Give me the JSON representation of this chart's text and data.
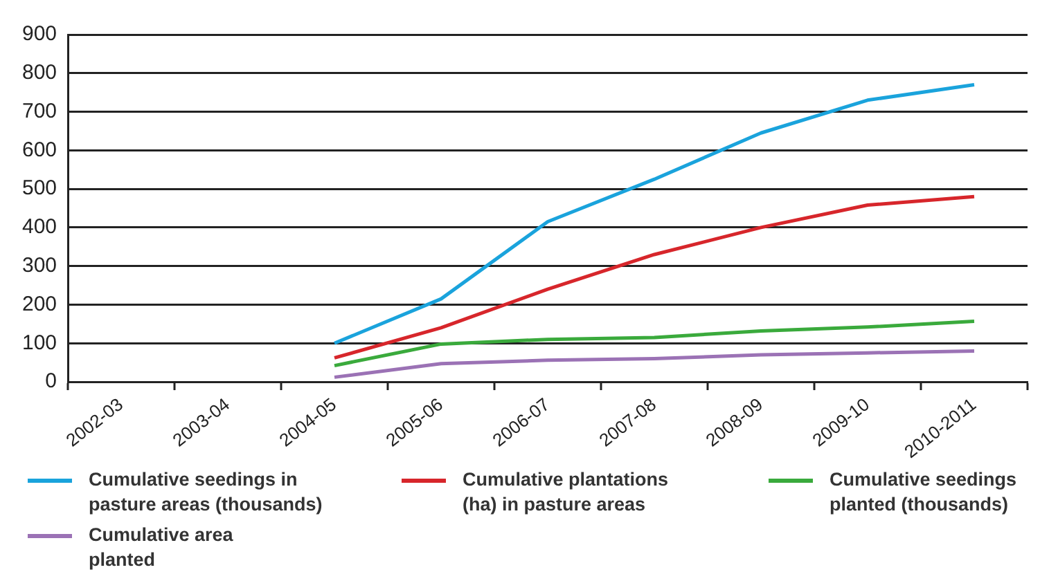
{
  "chart_data": {
    "type": "line",
    "categories": [
      "2002-03",
      "2003-04",
      "2004-05",
      "2005-06",
      "2006-07",
      "2007-08",
      "2008-09",
      "2009-10",
      "2010-2011"
    ],
    "series": [
      {
        "name": "Cumulative seedings in pasture areas (thousands)",
        "color": "#1aa3dc",
        "values": [
          null,
          null,
          100,
          215,
          415,
          525,
          645,
          730,
          770
        ]
      },
      {
        "name": "Cumulative plantations (ha) in pasture areas",
        "color": "#d7262b",
        "values": [
          null,
          null,
          62,
          140,
          240,
          330,
          400,
          458,
          480
        ]
      },
      {
        "name": "Cumulative seedings planted (thousands)",
        "color": "#3aaa3c",
        "values": [
          null,
          null,
          42,
          98,
          110,
          115,
          132,
          142,
          157
        ]
      },
      {
        "name": "Cumulative area planted",
        "color": "#9b72b5",
        "values": [
          null,
          null,
          12,
          47,
          56,
          60,
          70,
          75,
          80
        ]
      }
    ],
    "ylim": [
      0,
      900
    ],
    "yticks": [
      0,
      100,
      200,
      300,
      400,
      500,
      600,
      700,
      800,
      900
    ],
    "grid": "y",
    "legend": "bottom",
    "marker": "none",
    "line_style": "solid"
  }
}
